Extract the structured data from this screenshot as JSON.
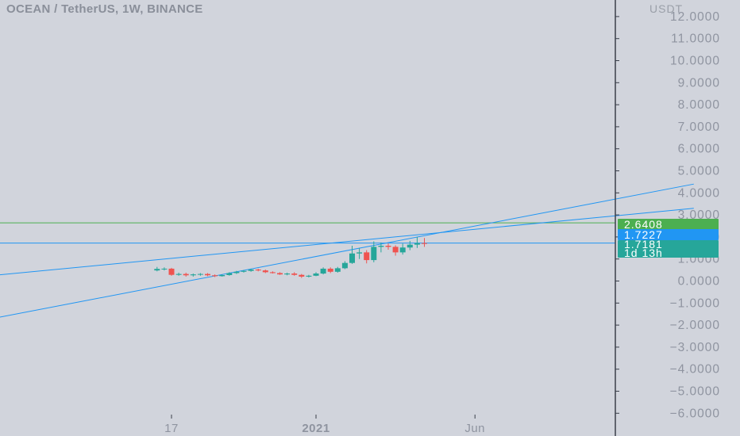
{
  "header": {
    "title": "OCEAN / TetherUS, 1W, BINANCE",
    "unit": "USDT"
  },
  "badges": {
    "green_level": "2.6408",
    "blue_level": "1.7227",
    "last_price": "1.7181",
    "countdown": "1d 13h"
  },
  "colors": {
    "background": "#d1d4dc",
    "axis_text": "#8f94a0",
    "trendline": "#2196f3",
    "horizontal_green": "#4caf50",
    "up_candle": "#26a69a",
    "down_candle": "#ef5350"
  },
  "chart_data": {
    "type": "candlestick",
    "title": "OCEAN / TetherUS, 1W, BINANCE",
    "y_unit": "USDT",
    "y_range": [
      -6.5,
      12.6
    ],
    "y_ticks": [
      12,
      11,
      10,
      9,
      8,
      7,
      6,
      5,
      4,
      3,
      2,
      1,
      0,
      -1,
      -2,
      -3,
      -4,
      -5,
      -6
    ],
    "y_tick_labels": [
      "12.0000",
      "11.0000",
      "10.0000",
      "9.0000",
      "8.0000",
      "7.0000",
      "6.0000",
      "5.0000",
      "4.0000",
      "3.0000",
      "2.0000",
      "1.0000",
      "0.0000",
      "−1.0000",
      "−2.0000",
      "−3.0000",
      "−4.0000",
      "−5.0000",
      "−6.0000"
    ],
    "x_ticks": [
      {
        "label": "17",
        "date": "2020-08-17"
      },
      {
        "label": "2021",
        "date": "2021-01-04"
      },
      {
        "label": "Jun",
        "date": "2021-06-07"
      }
    ],
    "x_range_dates": [
      "2019-05-01",
      "2022-01-05"
    ],
    "candles": [
      {
        "date": "2020-08-03",
        "open": 0.48,
        "high": 0.64,
        "low": 0.44,
        "close": 0.55
      },
      {
        "date": "2020-08-10",
        "open": 0.55,
        "high": 0.62,
        "low": 0.48,
        "close": 0.56
      },
      {
        "date": "2020-08-17",
        "open": 0.56,
        "high": 0.6,
        "low": 0.24,
        "close": 0.28
      },
      {
        "date": "2020-08-24",
        "open": 0.28,
        "high": 0.38,
        "low": 0.24,
        "close": 0.32
      },
      {
        "date": "2020-08-31",
        "open": 0.32,
        "high": 0.38,
        "low": 0.2,
        "close": 0.26
      },
      {
        "date": "2020-09-07",
        "open": 0.26,
        "high": 0.34,
        "low": 0.2,
        "close": 0.3
      },
      {
        "date": "2020-09-14",
        "open": 0.3,
        "high": 0.36,
        "low": 0.24,
        "close": 0.32
      },
      {
        "date": "2020-09-21",
        "open": 0.32,
        "high": 0.36,
        "low": 0.22,
        "close": 0.26
      },
      {
        "date": "2020-09-28",
        "open": 0.26,
        "high": 0.3,
        "low": 0.18,
        "close": 0.22
      },
      {
        "date": "2020-10-05",
        "open": 0.22,
        "high": 0.3,
        "low": 0.2,
        "close": 0.27
      },
      {
        "date": "2020-10-12",
        "open": 0.27,
        "high": 0.4,
        "low": 0.24,
        "close": 0.36
      },
      {
        "date": "2020-10-19",
        "open": 0.36,
        "high": 0.46,
        "low": 0.32,
        "close": 0.42
      },
      {
        "date": "2020-10-26",
        "open": 0.42,
        "high": 0.5,
        "low": 0.38,
        "close": 0.46
      },
      {
        "date": "2020-11-02",
        "open": 0.46,
        "high": 0.56,
        "low": 0.42,
        "close": 0.52
      },
      {
        "date": "2020-11-09",
        "open": 0.52,
        "high": 0.56,
        "low": 0.44,
        "close": 0.48
      },
      {
        "date": "2020-11-16",
        "open": 0.48,
        "high": 0.52,
        "low": 0.36,
        "close": 0.4
      },
      {
        "date": "2020-11-23",
        "open": 0.4,
        "high": 0.44,
        "low": 0.34,
        "close": 0.36
      },
      {
        "date": "2020-11-30",
        "open": 0.36,
        "high": 0.4,
        "low": 0.28,
        "close": 0.3
      },
      {
        "date": "2020-12-07",
        "open": 0.3,
        "high": 0.38,
        "low": 0.26,
        "close": 0.34
      },
      {
        "date": "2020-12-14",
        "open": 0.34,
        "high": 0.4,
        "low": 0.24,
        "close": 0.28
      },
      {
        "date": "2020-12-21",
        "open": 0.28,
        "high": 0.32,
        "low": 0.14,
        "close": 0.2
      },
      {
        "date": "2020-12-28",
        "open": 0.2,
        "high": 0.28,
        "low": 0.16,
        "close": 0.24
      },
      {
        "date": "2021-01-04",
        "open": 0.24,
        "high": 0.4,
        "low": 0.22,
        "close": 0.34
      },
      {
        "date": "2021-01-11",
        "open": 0.34,
        "high": 0.62,
        "low": 0.3,
        "close": 0.56
      },
      {
        "date": "2021-01-18",
        "open": 0.56,
        "high": 0.62,
        "low": 0.36,
        "close": 0.42
      },
      {
        "date": "2021-01-25",
        "open": 0.42,
        "high": 0.64,
        "low": 0.38,
        "close": 0.58
      },
      {
        "date": "2021-02-01",
        "open": 0.58,
        "high": 0.9,
        "low": 0.54,
        "close": 0.82
      },
      {
        "date": "2021-02-08",
        "open": 0.82,
        "high": 1.6,
        "low": 0.78,
        "close": 1.25
      },
      {
        "date": "2021-02-15",
        "open": 1.25,
        "high": 1.5,
        "low": 1.0,
        "close": 1.3
      },
      {
        "date": "2021-02-22",
        "open": 1.3,
        "high": 1.4,
        "low": 0.8,
        "close": 0.95
      },
      {
        "date": "2021-03-01",
        "open": 0.95,
        "high": 1.8,
        "low": 0.85,
        "close": 1.55
      },
      {
        "date": "2021-03-08",
        "open": 1.55,
        "high": 1.75,
        "low": 1.3,
        "close": 1.6
      },
      {
        "date": "2021-03-15",
        "open": 1.6,
        "high": 1.7,
        "low": 1.42,
        "close": 1.55
      },
      {
        "date": "2021-03-22",
        "open": 1.55,
        "high": 1.62,
        "low": 1.15,
        "close": 1.3
      },
      {
        "date": "2021-03-29",
        "open": 1.3,
        "high": 1.7,
        "low": 1.2,
        "close": 1.52
      },
      {
        "date": "2021-04-05",
        "open": 1.52,
        "high": 1.82,
        "low": 1.4,
        "close": 1.65
      },
      {
        "date": "2021-04-12",
        "open": 1.65,
        "high": 2.0,
        "low": 1.5,
        "close": 1.72
      },
      {
        "date": "2021-04-19",
        "open": 1.72,
        "high": 1.95,
        "low": 1.55,
        "close": 1.7181
      }
    ],
    "horizontal_lines": [
      {
        "value": 2.6408,
        "color": "#4caf50"
      },
      {
        "value": 1.7227,
        "color": "#2196f3"
      }
    ],
    "trendlines": [
      {
        "p1": {
          "date": "2019-05-01",
          "value": -1.1
        },
        "p2": {
          "date": "2022-01-05",
          "value": 3.3
        }
      },
      {
        "p1": {
          "date": "2019-05-01",
          "value": -4.4
        },
        "p2": {
          "date": "2022-01-05",
          "value": 4.4
        }
      }
    ],
    "grid": false,
    "legend": "none"
  }
}
